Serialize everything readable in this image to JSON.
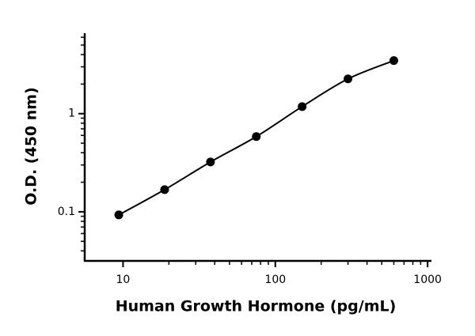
{
  "chart_data": {
    "type": "scatter",
    "x_label": "Human Growth Hormone (pg/mL)",
    "y_label": "O.D. (450 nm)",
    "log_x": true,
    "log_y": true,
    "x": [
      9.375,
      18.75,
      37.5,
      75,
      150,
      300,
      600
    ],
    "series": [
      {
        "color": "#000000",
        "values": [
          0.093,
          0.168,
          0.322,
          0.584,
          1.18,
          2.26,
          3.47
        ]
      }
    ],
    "fit_line": true,
    "xlim": [
      5.6,
      1060
    ],
    "xticks": [
      10,
      100,
      1000
    ],
    "xminorticks": [
      20,
      30,
      40,
      50,
      60,
      70,
      80,
      90,
      200,
      300,
      400,
      500,
      600,
      700,
      800,
      900
    ],
    "ylim": [
      0.0316,
      6.6
    ],
    "yticks": [
      0.1,
      1
    ],
    "yminorticks": [
      0.04,
      0.05,
      0.06,
      0.07,
      0.08,
      0.09,
      0.2,
      0.3,
      0.4,
      0.5,
      0.6,
      0.7,
      0.8,
      0.9,
      2,
      3,
      4,
      5,
      6
    ]
  }
}
